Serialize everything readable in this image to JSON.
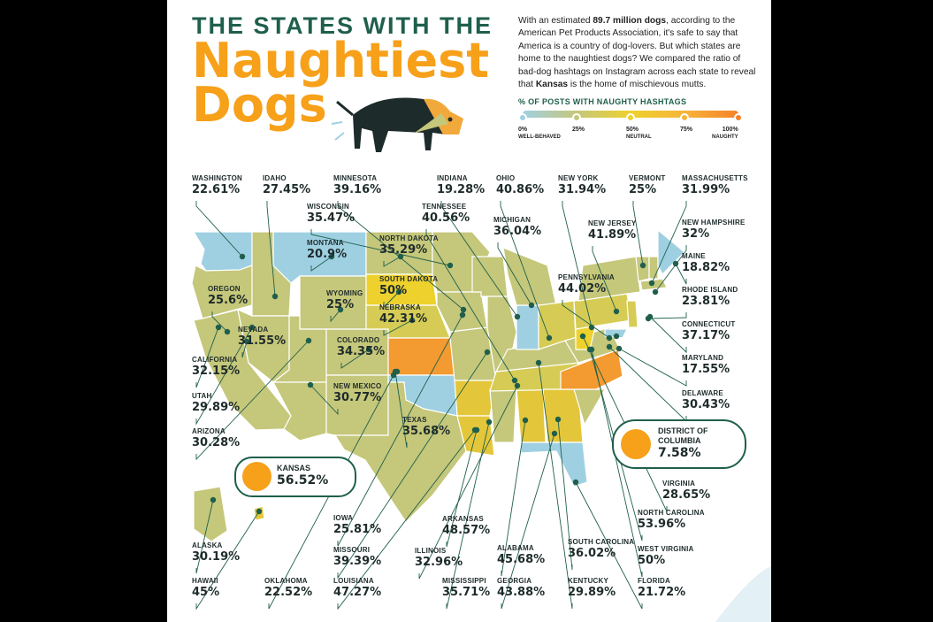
{
  "header": {
    "title_line1": "THE STATES WITH THE",
    "title_line2": "Naughtiest",
    "title_line3": "Dogs"
  },
  "intro": {
    "p1": "With an estimated ",
    "dogs": "89.7 million dogs",
    "p2": ", according to the American Pet Products Association, it's safe to say that America is a country of dog-lovers. But which states are home to the naughtiest dogs? We compared the ratio of bad-dog hashtags on Instagram across each state to reveal that ",
    "kansas": "Kansas",
    "p3": " is the home of mischievous mutts."
  },
  "legend": {
    "title": "% OF POSTS WITH NAUGHTY HASHTAGS",
    "ticks": [
      {
        "pct": "0%",
        "note": "WELL-BEHAVED",
        "color": "#9fd0e2"
      },
      {
        "pct": "25%",
        "note": "",
        "color": "#c5c77a"
      },
      {
        "pct": "50%",
        "note": "NEUTRAL",
        "color": "#eed12d"
      },
      {
        "pct": "75%",
        "note": "",
        "color": "#f7b43a"
      },
      {
        "pct": "100%",
        "note": "NAUGHTY",
        "color": "#f5822a"
      }
    ]
  },
  "colors": {
    "low": "#9fd0e2",
    "mid_low": "#c5c77a",
    "mid": "#eed12d",
    "high": "#f5822a",
    "text": "#1e2b2b",
    "brand": "#1f5f4c",
    "orange": "#f7a01a"
  },
  "chart_data": {
    "type": "choropleth",
    "unit": "% of posts with naughty hashtags",
    "scale": [
      0,
      100
    ],
    "states": [
      {
        "name": "WASHINGTON",
        "value": "22.61%",
        "num": 22.61
      },
      {
        "name": "IDAHO",
        "value": "27.45%",
        "num": 27.45
      },
      {
        "name": "MINNESOTA",
        "value": "39.16%",
        "num": 39.16
      },
      {
        "name": "INDIANA",
        "value": "19.28%",
        "num": 19.28
      },
      {
        "name": "OHIO",
        "value": "40.86%",
        "num": 40.86
      },
      {
        "name": "NEW YORK",
        "value": "31.94%",
        "num": 31.94
      },
      {
        "name": "VERMONT",
        "value": "25%",
        "num": 25
      },
      {
        "name": "MASSACHUSETTS",
        "value": "31.99%",
        "num": 31.99
      },
      {
        "name": "WISCONSIN",
        "value": "35.47%",
        "num": 35.47
      },
      {
        "name": "TENNESSEE",
        "value": "40.56%",
        "num": 40.56
      },
      {
        "name": "MONTANA",
        "value": "20.9%",
        "num": 20.9
      },
      {
        "name": "NORTH DAKOTA",
        "value": "35.29%",
        "num": 35.29
      },
      {
        "name": "MICHIGAN",
        "value": "36.04%",
        "num": 36.04
      },
      {
        "name": "NEW JERSEY",
        "value": "41.89%",
        "num": 41.89
      },
      {
        "name": "NEW HAMPSHIRE",
        "value": "32%",
        "num": 32
      },
      {
        "name": "MAINE",
        "value": "18.82%",
        "num": 18.82
      },
      {
        "name": "OREGON",
        "value": "25.6%",
        "num": 25.6
      },
      {
        "name": "SOUTH DAKOTA",
        "value": "50%",
        "num": 50
      },
      {
        "name": "WYOMING",
        "value": "25%",
        "num": 25
      },
      {
        "name": "PENNSYLVANIA",
        "value": "44.02%",
        "num": 44.02
      },
      {
        "name": "RHODE ISLAND",
        "value": "23.81%",
        "num": 23.81
      },
      {
        "name": "NEBRASKA",
        "value": "42.31%",
        "num": 42.31
      },
      {
        "name": "CONNECTICUT",
        "value": "37.17%",
        "num": 37.17
      },
      {
        "name": "NEVADA",
        "value": "31.55%",
        "num": 31.55
      },
      {
        "name": "COLORADO",
        "value": "34.35%",
        "num": 34.35
      },
      {
        "name": "CALIFORNIA",
        "value": "32.15%",
        "num": 32.15
      },
      {
        "name": "MARYLAND",
        "value": "17.55%",
        "num": 17.55
      },
      {
        "name": "UTAH",
        "value": "29.89%",
        "num": 29.89
      },
      {
        "name": "NEW MEXICO",
        "value": "30.77%",
        "num": 30.77
      },
      {
        "name": "DELAWARE",
        "value": "30.43%",
        "num": 30.43
      },
      {
        "name": "TEXAS",
        "value": "35.68%",
        "num": 35.68
      },
      {
        "name": "ARIZONA",
        "value": "30.28%",
        "num": 30.28
      },
      {
        "name": "DISTRICT OF COLUMBIA",
        "value": "7.58%",
        "num": 7.58
      },
      {
        "name": "KANSAS",
        "value": "56.52%",
        "num": 56.52
      },
      {
        "name": "VIRGINIA",
        "value": "28.65%",
        "num": 28.65
      },
      {
        "name": "IOWA",
        "value": "25.81%",
        "num": 25.81
      },
      {
        "name": "ARKANSAS",
        "value": "48.57%",
        "num": 48.57
      },
      {
        "name": "NORTH CAROLINA",
        "value": "53.96%",
        "num": 53.96
      },
      {
        "name": "ALASKA",
        "value": "30.19%",
        "num": 30.19
      },
      {
        "name": "MISSOURI",
        "value": "39.39%",
        "num": 39.39
      },
      {
        "name": "ILLINOIS",
        "value": "32.96%",
        "num": 32.96
      },
      {
        "name": "ALABAMA",
        "value": "45.68%",
        "num": 45.68
      },
      {
        "name": "SOUTH CAROLINA",
        "value": "36.02%",
        "num": 36.02
      },
      {
        "name": "WEST VIRGINIA",
        "value": "50%",
        "num": 50
      },
      {
        "name": "HAWAII",
        "value": "45%",
        "num": 45
      },
      {
        "name": "OKLAHOMA",
        "value": "22.52%",
        "num": 22.52
      },
      {
        "name": "LOUISIANA",
        "value": "47.27%",
        "num": 47.27
      },
      {
        "name": "MISSISSIPPI",
        "value": "35.71%",
        "num": 35.71
      },
      {
        "name": "GEORGIA",
        "value": "43.88%",
        "num": 43.88
      },
      {
        "name": "KENTUCKY",
        "value": "29.89%",
        "num": 29.89
      },
      {
        "name": "FLORIDA",
        "value": "21.72%",
        "num": 21.72
      }
    ]
  }
}
